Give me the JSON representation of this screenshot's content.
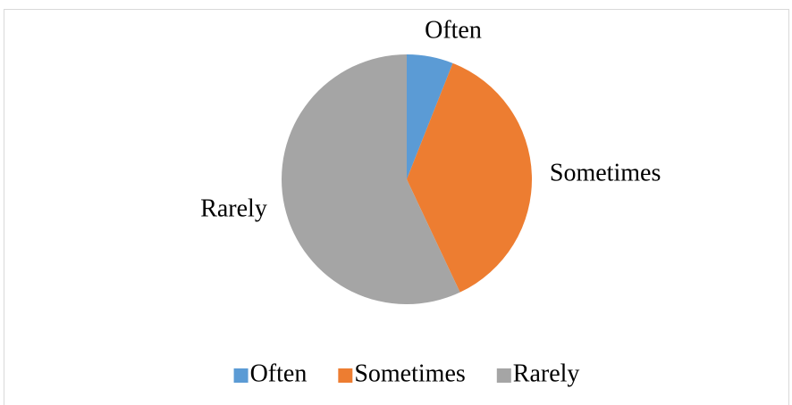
{
  "chart_data": {
    "type": "pie",
    "categories": [
      "Often",
      "Sometimes",
      "Rarely"
    ],
    "values": [
      6,
      37,
      57
    ],
    "colors": [
      "#5b9bd5",
      "#ed7d31",
      "#a5a5a5"
    ],
    "legend": "bottom"
  }
}
